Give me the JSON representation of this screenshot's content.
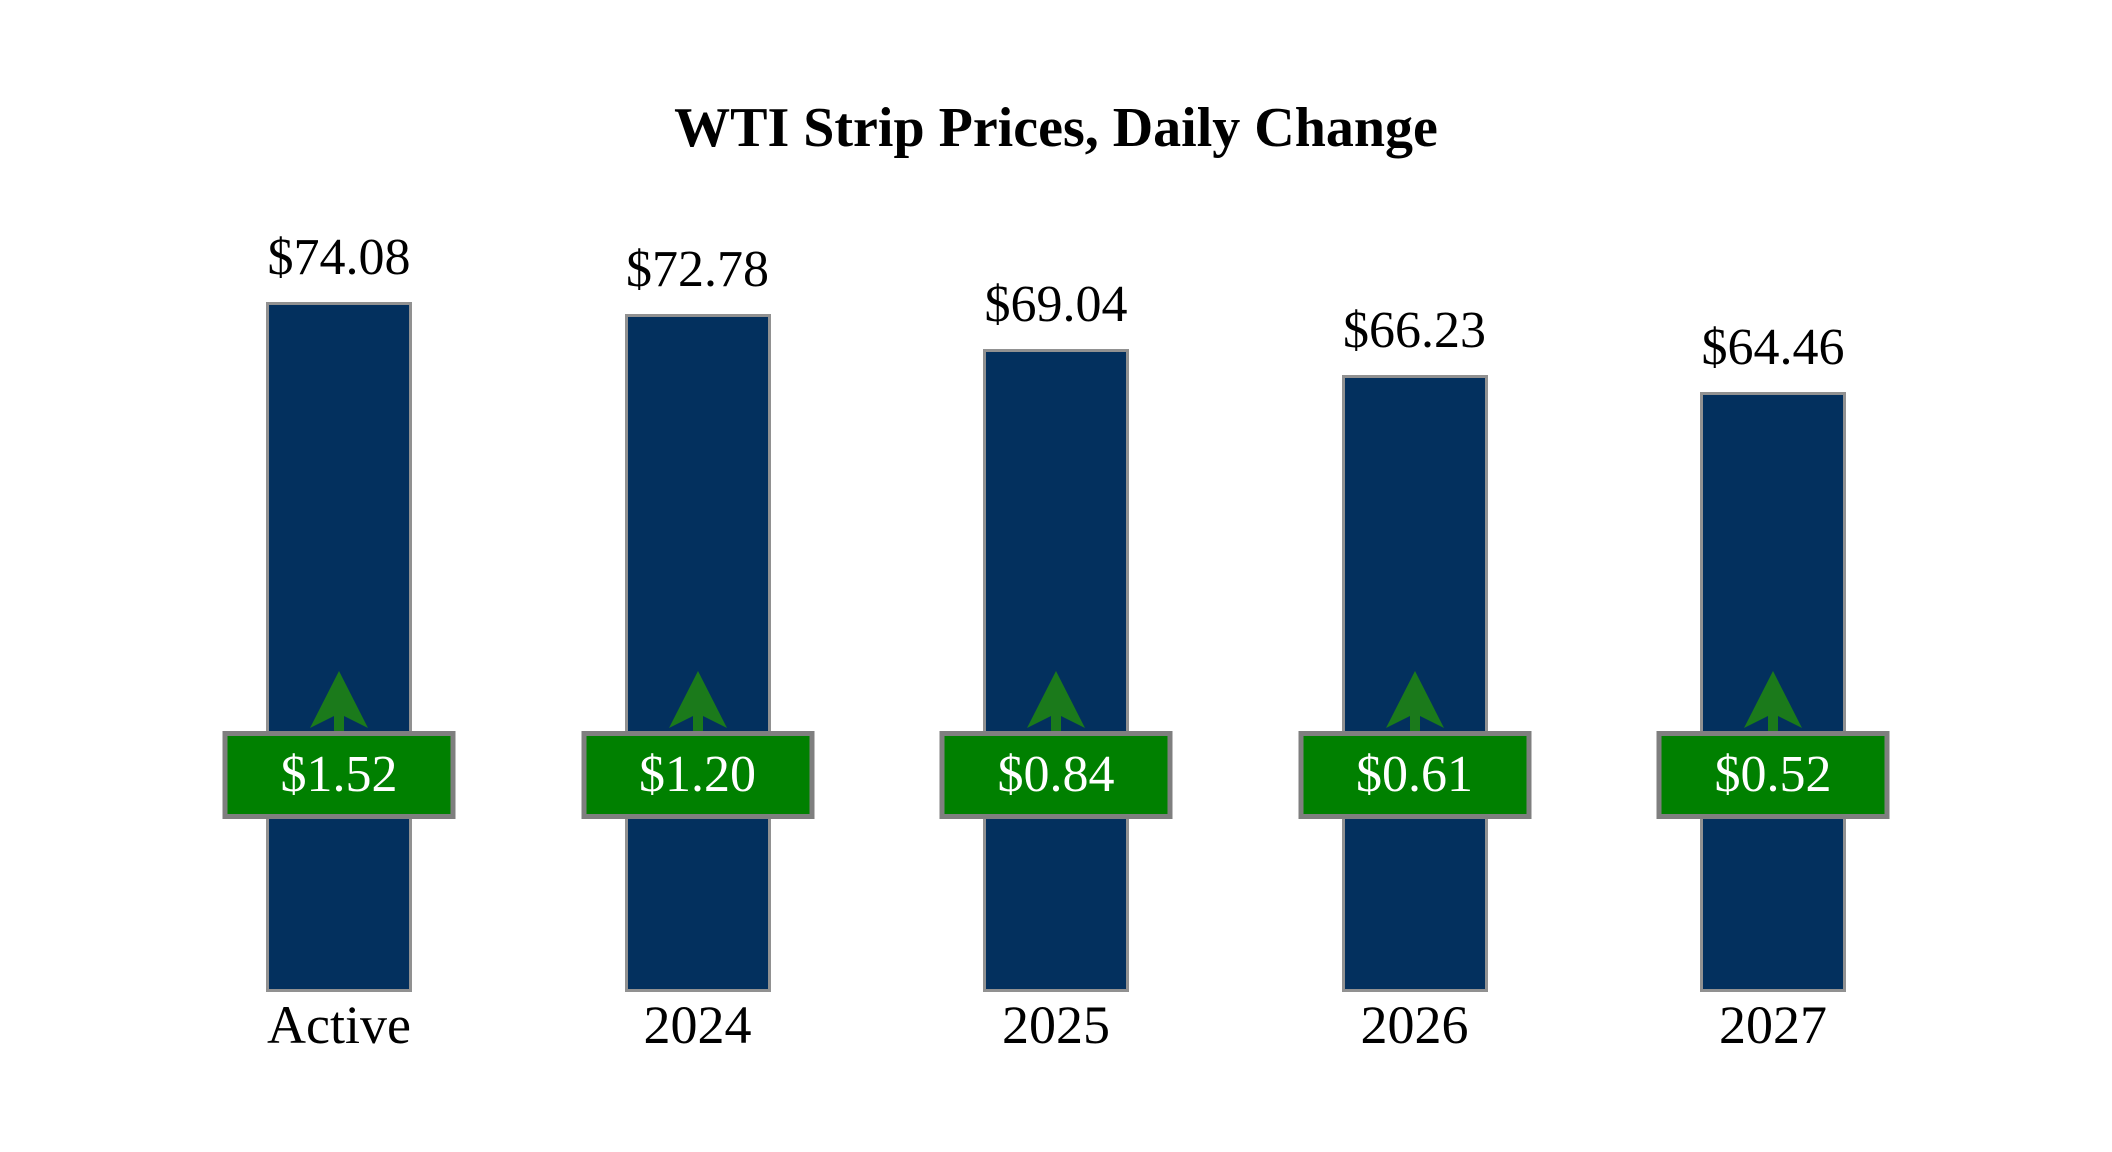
{
  "title": "WTI Strip Prices, Daily Change",
  "colors": {
    "bar_fill": "#03305E",
    "bar_border": "#919191",
    "badge_fill": "#008000",
    "badge_border": "#7F7F7F",
    "arrow_green": "#1B7A1B",
    "label_text": "#000000",
    "badge_text": "#FFFFFF",
    "background": "#FFFFFF"
  },
  "chart_data": {
    "type": "bar",
    "title": "WTI Strip Prices, Daily Change",
    "categories": [
      "Active",
      "2024",
      "2025",
      "2026",
      "2027"
    ],
    "series": [
      {
        "name": "WTI Strip Price",
        "role": "bar",
        "values": [
          74.08,
          72.78,
          69.04,
          66.23,
          64.46
        ],
        "labels": [
          "$74.08",
          "$72.78",
          "$69.04",
          "$66.23",
          "$64.46"
        ]
      },
      {
        "name": "Daily Change",
        "role": "badge",
        "direction": "up",
        "values": [
          1.52,
          1.2,
          0.84,
          0.61,
          0.52
        ],
        "labels": [
          "$1.52",
          "$1.20",
          "$0.84",
          "$0.61",
          "$0.52"
        ]
      }
    ],
    "ylim": [
      0,
      78
    ],
    "grid": false,
    "legend": "none",
    "value_axis_visible": false
  }
}
